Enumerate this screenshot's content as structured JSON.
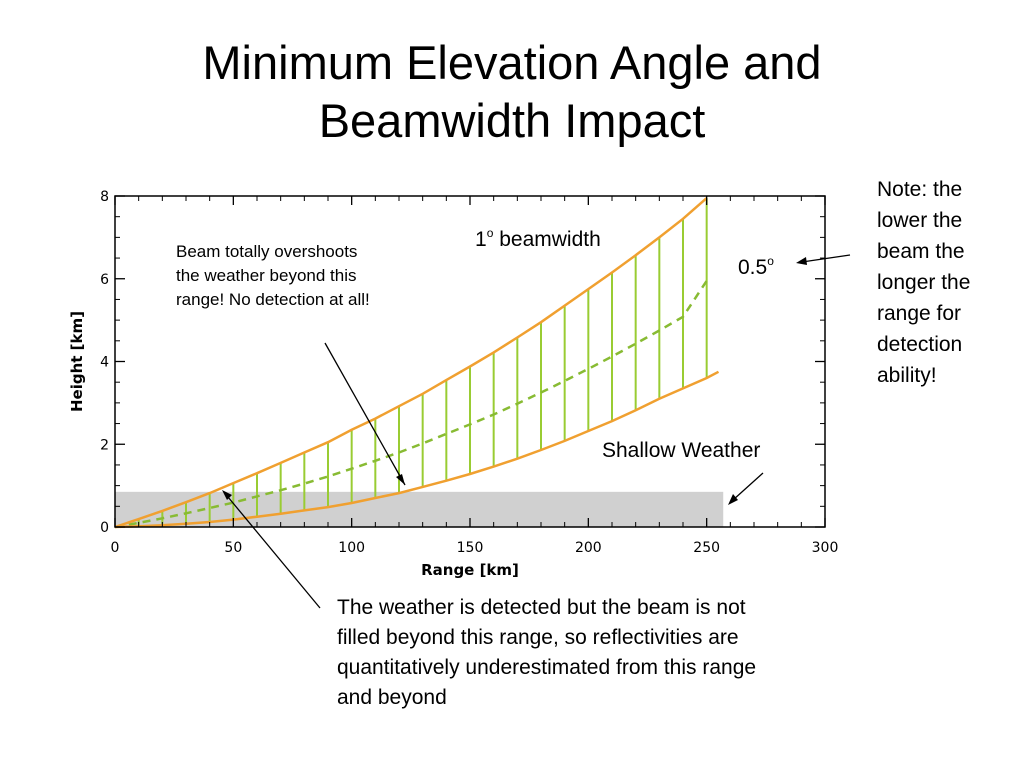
{
  "slide": {
    "title_line1": "Minimum Elevation Angle and",
    "title_line2": "Beamwidth Impact"
  },
  "annotations": {
    "overshoot": [
      "Beam totally overshoots",
      "the weather beyond this",
      "range! No detection at all!"
    ],
    "beamwidth_number": "1",
    "beamwidth_sup": "o",
    "beamwidth_text": " beamwidth",
    "center_number": "0.5",
    "center_sup": "o",
    "shallow": "Shallow Weather",
    "note": [
      "Note: the",
      "lower the",
      "beam the",
      "longer the",
      "range for",
      "detection",
      "ability!"
    ],
    "detect": [
      "The weather is detected but the beam is not",
      "filled beyond this range, so reflectivities are",
      "quantitatively underestimated from this range",
      "and beyond"
    ]
  },
  "colors": {
    "beam_edge": "#f0a030",
    "beam_fill": "#99cc33",
    "center_line": "#88bb33",
    "weather_box": "#d0d0d0",
    "axis": "#000000"
  },
  "chart_data": {
    "type": "line",
    "xlabel": "Range [km]",
    "ylabel": "Height [km]",
    "xlim": [
      0,
      300
    ],
    "ylim": [
      0,
      8
    ],
    "xticks": [
      0,
      50,
      100,
      150,
      200,
      250,
      300
    ],
    "yticks": [
      0,
      2,
      4,
      6,
      8
    ],
    "beam_upper": {
      "x": [
        0,
        10,
        20,
        30,
        40,
        50,
        60,
        70,
        80,
        90,
        100,
        110,
        120,
        130,
        140,
        150,
        160,
        170,
        180,
        190,
        200,
        210,
        220,
        230,
        240,
        250
      ],
      "y": [
        0.0,
        0.19,
        0.39,
        0.6,
        0.82,
        1.06,
        1.3,
        1.55,
        1.8,
        2.05,
        2.35,
        2.62,
        2.92,
        3.22,
        3.55,
        3.88,
        4.22,
        4.58,
        4.95,
        5.35,
        5.75,
        6.15,
        6.57,
        7.0,
        7.45,
        7.95
      ]
    },
    "beam_center": {
      "x": [
        0,
        10,
        20,
        30,
        40,
        50,
        60,
        70,
        80,
        90,
        100,
        110,
        120,
        130,
        140,
        150,
        160,
        170,
        180,
        190,
        200,
        210,
        220,
        230,
        240,
        250
      ],
      "y": [
        0.0,
        0.1,
        0.21,
        0.33,
        0.46,
        0.59,
        0.74,
        0.89,
        1.05,
        1.22,
        1.41,
        1.6,
        1.8,
        2.02,
        2.25,
        2.48,
        2.72,
        2.98,
        3.25,
        3.53,
        3.82,
        4.12,
        4.43,
        4.75,
        5.08,
        5.95
      ]
    },
    "beam_lower": {
      "x": [
        0,
        10,
        20,
        30,
        40,
        50,
        60,
        70,
        80,
        90,
        100,
        110,
        120,
        130,
        140,
        150,
        160,
        170,
        180,
        190,
        200,
        210,
        220,
        230,
        240,
        250,
        255
      ],
      "y": [
        0.0,
        0.02,
        0.04,
        0.08,
        0.12,
        0.18,
        0.25,
        0.32,
        0.4,
        0.48,
        0.58,
        0.7,
        0.82,
        0.97,
        1.12,
        1.28,
        1.46,
        1.65,
        1.86,
        2.08,
        2.32,
        2.56,
        2.82,
        3.1,
        3.35,
        3.6,
        3.75
      ]
    },
    "shallow_weather": {
      "x": [
        0,
        257
      ],
      "y": [
        0,
        0.85
      ]
    }
  }
}
